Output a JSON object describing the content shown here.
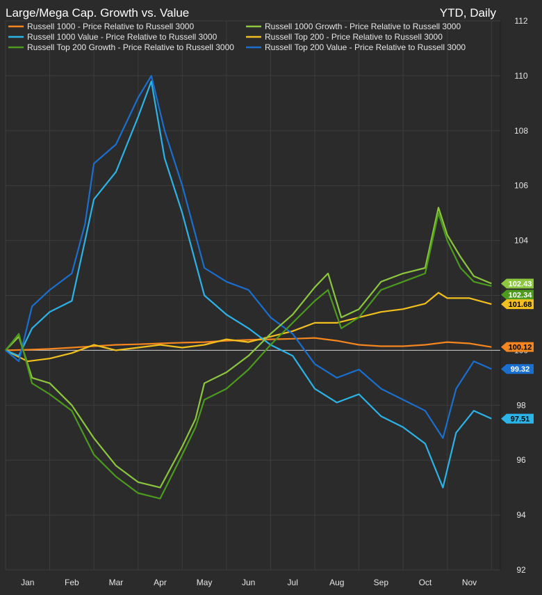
{
  "chart_data": {
    "type": "line",
    "title": "Large/Mega Cap. Growth vs. Value",
    "subtitle": "YTD, Daily",
    "xlabel": "",
    "ylabel": "",
    "x_axis": {
      "domain": [
        0,
        11.2
      ],
      "tick_positions": [
        0.5,
        1.5,
        2.5,
        3.5,
        4.5,
        5.5,
        6.5,
        7.5,
        8.5,
        9.5,
        10.5
      ],
      "tick_labels": [
        "Jan",
        "Feb",
        "Mar",
        "Apr",
        "May",
        "Jun",
        "Jul",
        "Aug",
        "Sep",
        "Oct",
        "Nov"
      ]
    },
    "y_axis": {
      "ylim": [
        92,
        112
      ],
      "ticks": [
        92,
        94,
        96,
        98,
        100,
        102,
        104,
        106,
        108,
        110,
        112
      ],
      "reference_line": 100
    },
    "grid": true,
    "legend_position": "top",
    "x_unit": "month of year (0 = Jan 1)",
    "series": [
      {
        "name": "Russell 1000 - Price Relative to Russell 3000",
        "color": "#f5861f",
        "last_value": 100.12,
        "points": [
          [
            0,
            100
          ],
          [
            0.5,
            100.02
          ],
          [
            1,
            100.05
          ],
          [
            1.5,
            100.1
          ],
          [
            2,
            100.15
          ],
          [
            2.5,
            100.2
          ],
          [
            3,
            100.22
          ],
          [
            3.5,
            100.25
          ],
          [
            4,
            100.28
          ],
          [
            4.5,
            100.3
          ],
          [
            5,
            100.35
          ],
          [
            5.5,
            100.38
          ],
          [
            6,
            100.4
          ],
          [
            6.5,
            100.42
          ],
          [
            7,
            100.45
          ],
          [
            7.5,
            100.35
          ],
          [
            8,
            100.2
          ],
          [
            8.5,
            100.15
          ],
          [
            9,
            100.15
          ],
          [
            9.5,
            100.2
          ],
          [
            10,
            100.3
          ],
          [
            10.5,
            100.25
          ],
          [
            11,
            100.12
          ]
        ]
      },
      {
        "name": "Russell 1000 Growth - Price Relative to Russell 3000",
        "color": "#8dc63f",
        "last_value": 102.43,
        "points": [
          [
            0,
            100
          ],
          [
            0.3,
            100.5
          ],
          [
            0.6,
            99.0
          ],
          [
            1,
            98.8
          ],
          [
            1.5,
            98.0
          ],
          [
            2,
            96.8
          ],
          [
            2.5,
            95.8
          ],
          [
            3,
            95.2
          ],
          [
            3.5,
            95.0
          ],
          [
            4,
            96.5
          ],
          [
            4.3,
            97.5
          ],
          [
            4.5,
            98.8
          ],
          [
            5,
            99.2
          ],
          [
            5.5,
            99.8
          ],
          [
            6,
            100.6
          ],
          [
            6.5,
            101.3
          ],
          [
            7,
            102.3
          ],
          [
            7.3,
            102.8
          ],
          [
            7.6,
            101.2
          ],
          [
            8,
            101.5
          ],
          [
            8.5,
            102.5
          ],
          [
            9,
            102.8
          ],
          [
            9.5,
            103.0
          ],
          [
            9.8,
            105.2
          ],
          [
            10,
            104.2
          ],
          [
            10.3,
            103.4
          ],
          [
            10.6,
            102.7
          ],
          [
            11,
            102.43
          ]
        ]
      },
      {
        "name": "Russell 1000 Value - Price Relative to Russell 3000",
        "color": "#2cb4e8",
        "last_value": 97.51,
        "points": [
          [
            0,
            100
          ],
          [
            0.3,
            99.8
          ],
          [
            0.6,
            100.8
          ],
          [
            1,
            101.4
          ],
          [
            1.5,
            101.8
          ],
          [
            1.8,
            104.0
          ],
          [
            2,
            105.5
          ],
          [
            2.5,
            106.5
          ],
          [
            3,
            108.5
          ],
          [
            3.3,
            109.8
          ],
          [
            3.6,
            107.0
          ],
          [
            4,
            105.0
          ],
          [
            4.5,
            102.0
          ],
          [
            5,
            101.3
          ],
          [
            5.5,
            100.8
          ],
          [
            6,
            100.2
          ],
          [
            6.5,
            99.8
          ],
          [
            7,
            98.6
          ],
          [
            7.5,
            98.1
          ],
          [
            8,
            98.4
          ],
          [
            8.5,
            97.6
          ],
          [
            9,
            97.2
          ],
          [
            9.5,
            96.6
          ],
          [
            9.9,
            95.0
          ],
          [
            10.2,
            97.0
          ],
          [
            10.6,
            97.8
          ],
          [
            11,
            97.51
          ]
        ]
      },
      {
        "name": "Russell Top 200 - Price Relative to Russell 3000",
        "color": "#f2c01e",
        "last_value": 101.68,
        "points": [
          [
            0,
            100
          ],
          [
            0.5,
            99.6
          ],
          [
            1,
            99.7
          ],
          [
            1.5,
            99.9
          ],
          [
            2,
            100.2
          ],
          [
            2.5,
            100.0
          ],
          [
            3,
            100.1
          ],
          [
            3.5,
            100.2
          ],
          [
            4,
            100.1
          ],
          [
            4.5,
            100.2
          ],
          [
            5,
            100.4
          ],
          [
            5.5,
            100.3
          ],
          [
            6,
            100.5
          ],
          [
            6.5,
            100.7
          ],
          [
            7,
            101.0
          ],
          [
            7.5,
            101.0
          ],
          [
            8,
            101.2
          ],
          [
            8.5,
            101.4
          ],
          [
            9,
            101.5
          ],
          [
            9.5,
            101.7
          ],
          [
            9.8,
            102.1
          ],
          [
            10,
            101.9
          ],
          [
            10.5,
            101.9
          ],
          [
            11,
            101.68
          ]
        ]
      },
      {
        "name": "Russell Top 200 Growth - Price Relative to Russell 3000",
        "color": "#4c9a1e",
        "last_value": 102.34,
        "points": [
          [
            0,
            100
          ],
          [
            0.3,
            100.6
          ],
          [
            0.6,
            98.8
          ],
          [
            1,
            98.4
          ],
          [
            1.5,
            97.8
          ],
          [
            2,
            96.2
          ],
          [
            2.5,
            95.4
          ],
          [
            3,
            94.8
          ],
          [
            3.5,
            94.6
          ],
          [
            4,
            96.2
          ],
          [
            4.3,
            97.2
          ],
          [
            4.5,
            98.2
          ],
          [
            5,
            98.6
          ],
          [
            5.5,
            99.3
          ],
          [
            6,
            100.2
          ],
          [
            6.5,
            101.0
          ],
          [
            7,
            101.8
          ],
          [
            7.3,
            102.2
          ],
          [
            7.6,
            100.8
          ],
          [
            8,
            101.2
          ],
          [
            8.5,
            102.2
          ],
          [
            9,
            102.5
          ],
          [
            9.5,
            102.8
          ],
          [
            9.8,
            105.0
          ],
          [
            10,
            104.0
          ],
          [
            10.3,
            103.0
          ],
          [
            10.6,
            102.5
          ],
          [
            11,
            102.34
          ]
        ]
      },
      {
        "name": "Russell Top 200 Value - Price Relative to Russell 3000",
        "color": "#1a6fcf",
        "last_value": 99.32,
        "points": [
          [
            0,
            100
          ],
          [
            0.3,
            99.6
          ],
          [
            0.6,
            101.6
          ],
          [
            1,
            102.2
          ],
          [
            1.5,
            102.8
          ],
          [
            1.8,
            104.6
          ],
          [
            2,
            106.8
          ],
          [
            2.5,
            107.5
          ],
          [
            3,
            109.2
          ],
          [
            3.3,
            110.0
          ],
          [
            3.6,
            108.0
          ],
          [
            4,
            106.0
          ],
          [
            4.5,
            103.0
          ],
          [
            5,
            102.5
          ],
          [
            5.5,
            102.2
          ],
          [
            6,
            101.2
          ],
          [
            6.5,
            100.6
          ],
          [
            7,
            99.5
          ],
          [
            7.5,
            99.0
          ],
          [
            8,
            99.3
          ],
          [
            8.5,
            98.6
          ],
          [
            9,
            98.2
          ],
          [
            9.5,
            97.8
          ],
          [
            9.9,
            96.8
          ],
          [
            10.2,
            98.6
          ],
          [
            10.6,
            99.6
          ],
          [
            11,
            99.32
          ]
        ]
      }
    ]
  }
}
